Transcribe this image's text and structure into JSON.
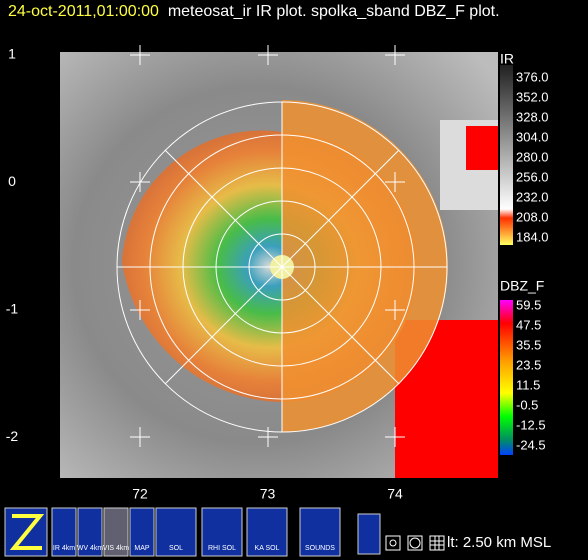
{
  "header": {
    "timestamp": "24-oct-2011,01:00:00",
    "title": "meteosat_ir IR  plot.  spolka_sband DBZ_F plot."
  },
  "axes": {
    "y_labels": [
      "1",
      "0",
      "-1",
      "-2"
    ],
    "x_labels": [
      "72",
      "73",
      "74"
    ]
  },
  "colorbars": [
    {
      "title": "IR",
      "labels": [
        "376.0",
        "352.0",
        "328.0",
        "304.0",
        "280.0",
        "256.0",
        "232.0",
        "208.0",
        "184.0"
      ]
    },
    {
      "title": "DBZ_F",
      "labels": [
        "59.5",
        "47.5",
        "35.5",
        "23.5",
        "11.5",
        "-0.5",
        "-12.5",
        "-24.5"
      ]
    }
  ],
  "toolbar": {
    "buttons": [
      "IR 4km",
      "WV 4km",
      "VIS 4km",
      "MAP",
      "SOL",
      "RHI SOL",
      "KA SOL",
      "SOUNDS"
    ],
    "status": "lt: 2.50 km MSL"
  }
}
